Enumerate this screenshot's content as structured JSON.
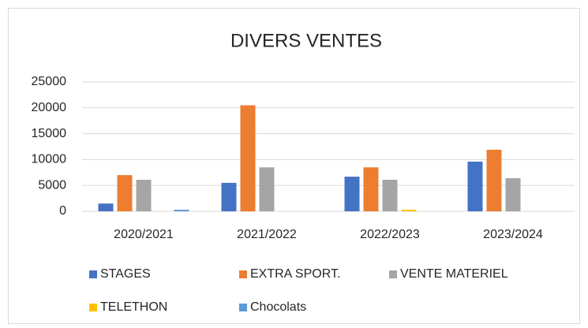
{
  "chart_data": {
    "type": "bar",
    "title": "DIVERS VENTES",
    "categories": [
      "2020/2021",
      "2021/2022",
      "2022/2023",
      "2023/2024"
    ],
    "series": [
      {
        "name": "STAGES",
        "color": "#4472c4",
        "values": [
          1500,
          5500,
          6700,
          9600
        ]
      },
      {
        "name": "EXTRA SPORT.",
        "color": "#ed7d31",
        "values": [
          7000,
          20500,
          8500,
          11900
        ]
      },
      {
        "name": "VENTE MATERIEL",
        "color": "#a5a5a5",
        "values": [
          6100,
          8500,
          6100,
          6400
        ]
      },
      {
        "name": "TELETHON",
        "color": "#ffc000",
        "values": [
          0,
          0,
          300,
          0
        ]
      },
      {
        "name": "Chocolats",
        "color": "#5b9bd5",
        "values": [
          300,
          0,
          0,
          0
        ]
      }
    ],
    "ylim": [
      0,
      25000
    ],
    "yticks": [
      0,
      5000,
      10000,
      15000,
      20000,
      25000
    ],
    "grid": true,
    "legend": "bottom"
  }
}
